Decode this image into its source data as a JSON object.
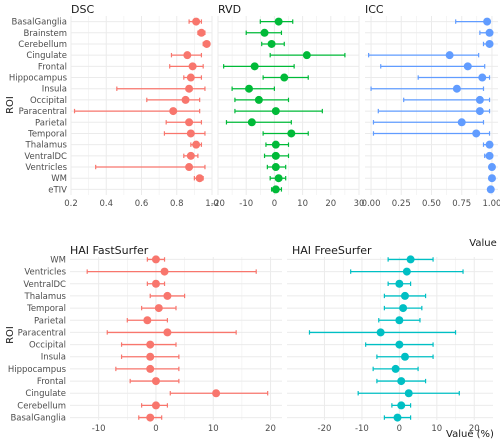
{
  "colors": {
    "dsc": "#f8766d",
    "rvd": "#00ba38",
    "icc": "#619cff",
    "fastsurfer": "#f8766d",
    "freesurfer": "#00bfc4",
    "grid": "#ebebeb"
  },
  "chart_data": [
    {
      "type": "scatter",
      "title": "DSC",
      "ylabel": "ROI",
      "xlabel": "",
      "xlim": [
        0.2,
        1.0
      ],
      "xticks": [
        "0.2",
        "0.4",
        "0.6",
        "0.8",
        "1.0"
      ],
      "categories": [
        "BasalGanglia",
        "Brainstem",
        "Cerebellum",
        "Cingulate",
        "Frontal",
        "Hippocampus",
        "Insula",
        "Occipital",
        "Paracentral",
        "Parietal",
        "Temporal",
        "Thalamus",
        "VentralDC",
        "Ventricles",
        "WM",
        "eTIV"
      ],
      "values": [
        0.91,
        0.94,
        0.97,
        0.86,
        0.89,
        0.88,
        0.87,
        0.85,
        0.78,
        0.87,
        0.88,
        0.91,
        0.88,
        0.87,
        0.93,
        null
      ],
      "lower": [
        0.87,
        0.92,
        0.95,
        0.77,
        0.76,
        0.84,
        0.46,
        0.63,
        0.22,
        0.74,
        0.73,
        0.88,
        0.84,
        0.34,
        0.9,
        null
      ],
      "upper": [
        0.94,
        0.96,
        0.98,
        0.94,
        0.95,
        0.94,
        0.96,
        0.93,
        0.93,
        0.94,
        0.96,
        0.94,
        0.92,
        0.96,
        0.95,
        null
      ]
    },
    {
      "type": "scatter",
      "title": "RVD",
      "xlabel": "",
      "xlim": [
        -20,
        30
      ],
      "xticks": [
        "-20",
        "-10",
        "0",
        "10",
        "20",
        "30"
      ],
      "categories": [
        "BasalGanglia",
        "Brainstem",
        "Cerebellum",
        "Cingulate",
        "Frontal",
        "Hippocampus",
        "Insula",
        "Occipital",
        "Paracentral",
        "Parietal",
        "Temporal",
        "Thalamus",
        "VentralDC",
        "Ventricles",
        "WM",
        "eTIV"
      ],
      "values": [
        1.5,
        -3.5,
        -1,
        11.5,
        -7,
        3.5,
        -9,
        -5.5,
        0.5,
        -8,
        6,
        0.5,
        0.5,
        0.5,
        1.5,
        0.5
      ],
      "lower": [
        -5,
        -10,
        -4.5,
        -1.5,
        -18,
        -4,
        -15,
        -14,
        -14,
        -17,
        -4,
        -3,
        -3.5,
        -2.5,
        -1.5,
        -1
      ],
      "upper": [
        6.5,
        2.5,
        3.5,
        25,
        7,
        12,
        0,
        5,
        17,
        6,
        12,
        5,
        5,
        4,
        4,
        2.5
      ]
    },
    {
      "type": "scatter",
      "title": "ICC",
      "xlabel": "Value",
      "xlim": [
        -0.05,
        1.05
      ],
      "xticks": [
        "0.00",
        "0.25",
        "0.50",
        "0.75",
        "1.00"
      ],
      "categories": [
        "BasalGanglia",
        "Brainstem",
        "Cerebellum",
        "Cingulate",
        "Frontal",
        "Hippocampus",
        "Insula",
        "Occipital",
        "Paracentral",
        "Parietal",
        "Temporal",
        "Thalamus",
        "VentralDC",
        "Ventricles",
        "WM",
        "eTIV"
      ],
      "values": [
        0.96,
        0.98,
        0.98,
        0.65,
        0.8,
        0.92,
        0.71,
        0.9,
        0.9,
        0.75,
        0.87,
        0.98,
        0.98,
        1.0,
        1.0,
        0.99
      ],
      "lower": [
        0.7,
        0.9,
        0.93,
        -0.02,
        0.08,
        0.39,
        0.0,
        0.27,
        0.06,
        0.02,
        0.02,
        0.93,
        0.94,
        0.99,
        0.98,
        0.97
      ],
      "upper": [
        0.98,
        0.99,
        0.99,
        0.89,
        0.94,
        0.98,
        0.93,
        0.98,
        0.98,
        0.93,
        0.98,
        0.99,
        0.99,
        1.0,
        1.0,
        1.0
      ]
    },
    {
      "type": "scatter",
      "title": "HAI FastSurfer",
      "ylabel": "ROI",
      "xlabel": "",
      "xlim": [
        -15,
        22
      ],
      "xticks": [
        "-10",
        "0",
        "10",
        "20"
      ],
      "categories": [
        "WM",
        "Ventricles",
        "VentralDC",
        "Thalamus",
        "Temporal",
        "Parietal",
        "Paracentral",
        "Occipital",
        "Insula",
        "Hippocampus",
        "Frontal",
        "Cingulate",
        "Cerebellum",
        "BasalGanglia"
      ],
      "values": [
        0,
        1.5,
        0,
        2,
        0.5,
        -1.5,
        2,
        -1,
        -1,
        -1,
        0,
        10.5,
        0,
        -1
      ],
      "lower": [
        -1.5,
        -12,
        -1.5,
        -1,
        -2.5,
        -5,
        -8.5,
        -6,
        -6,
        -7,
        -4.5,
        2.5,
        -2.5,
        -3
      ],
      "upper": [
        1.5,
        17.5,
        1.5,
        5,
        3.5,
        2,
        14,
        3.5,
        4,
        4,
        4,
        19.5,
        2,
        1
      ]
    },
    {
      "type": "scatter",
      "title": "HAI FreeSurfer",
      "xlabel": "Value (%)",
      "xlim": [
        -30,
        25
      ],
      "xticks": [
        "-20",
        "-10",
        "0",
        "10",
        "20"
      ],
      "categories": [
        "WM",
        "Ventricles",
        "VentralDC",
        "Thalamus",
        "Temporal",
        "Parietal",
        "Paracentral",
        "Occipital",
        "Insula",
        "Hippocampus",
        "Frontal",
        "Cingulate",
        "Cerebellum",
        "BasalGanglia"
      ],
      "values": [
        3,
        2,
        0,
        1.5,
        1,
        0,
        -5,
        0,
        1.5,
        -1,
        0.5,
        2.5,
        0.5,
        -0.5
      ],
      "lower": [
        -3,
        -13,
        -3,
        -4,
        -4,
        -5.5,
        -24,
        -9,
        -6,
        -7,
        -6,
        -11,
        -2,
        -4
      ],
      "upper": [
        9,
        17,
        3,
        7,
        6,
        5.5,
        15,
        9,
        9,
        5,
        7,
        16,
        3,
        3
      ]
    }
  ]
}
